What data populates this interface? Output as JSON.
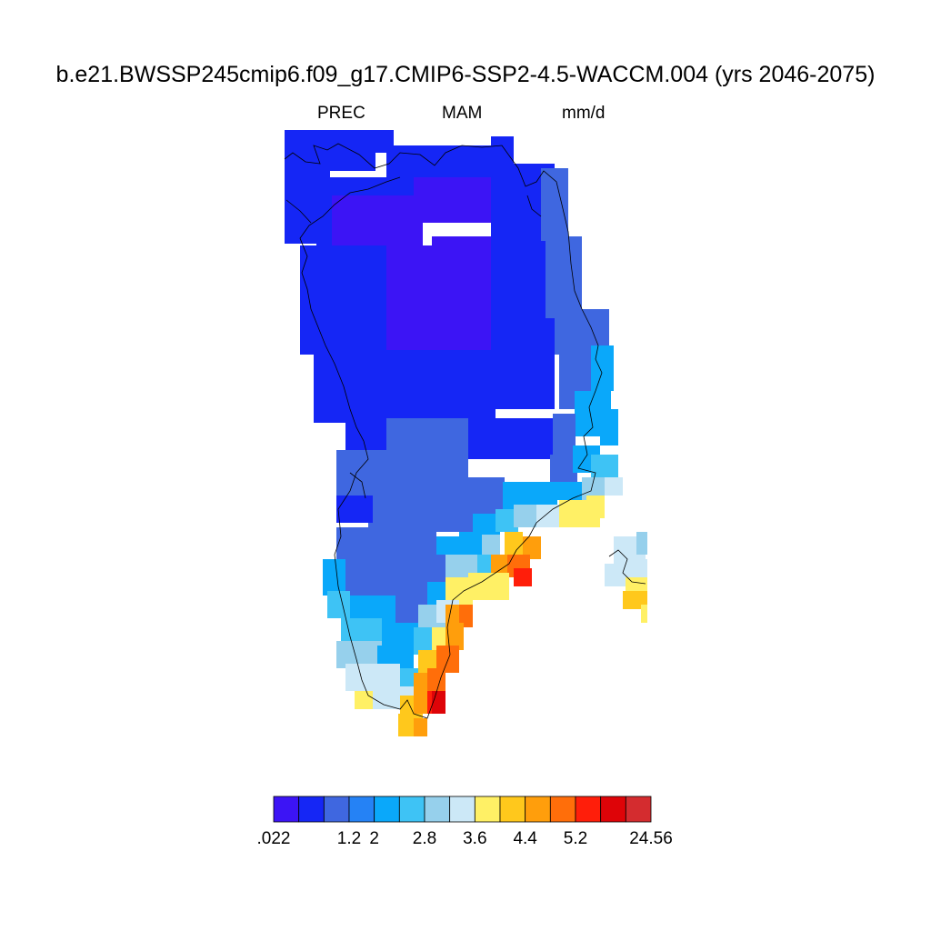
{
  "chart_data": {
    "type": "heatmap",
    "title": "b.e21.BWSSP245cmip6.f09_g17.CMIP6-SSP2-4.5-WACCM.004 (yrs 2046-2075)",
    "variable": "PREC",
    "season": "MAM",
    "units": "mm/d",
    "colorbar": {
      "levels": [
        ".022",
        "",
        "1.2",
        "2",
        "2.8",
        "3.6",
        "4.4",
        "5.2",
        "24.56"
      ],
      "bins": [
        {
          "range": "0.022–0.8",
          "color": "#3c14f5"
        },
        {
          "range": "0.8–1.2",
          "color": "#1526f5"
        },
        {
          "range": "1.2–1.6",
          "color": "#3f67e0"
        },
        {
          "range": "1.6–2.0",
          "color": "#2582f5"
        },
        {
          "range": "2.0–2.4",
          "color": "#0aa8fa"
        },
        {
          "range": "2.4–2.8",
          "color": "#3ec3f5"
        },
        {
          "range": "2.8–3.2",
          "color": "#96d0ec"
        },
        {
          "range": "3.2–3.6",
          "color": "#cce8f7"
        },
        {
          "range": "3.6–4.0",
          "color": "#fff065"
        },
        {
          "range": "4.0–4.4",
          "color": "#ffc81c"
        },
        {
          "range": "4.4–4.8",
          "color": "#ff9e0c"
        },
        {
          "range": "4.8–5.2",
          "color": "#ff6e0a"
        },
        {
          "range": "5.2–6.0",
          "color": "#ff1e0a"
        },
        {
          "range": "6.0–8.0",
          "color": "#de0408"
        },
        {
          "range": "8.0–24.56",
          "color": "#d42c2f"
        }
      ]
    },
    "regions": [
      {
        "name": "northwest-coast",
        "color_index": 1
      },
      {
        "name": "north-interior",
        "color_index": 0
      },
      {
        "name": "central",
        "color_index": 1
      },
      {
        "name": "east-coast-north",
        "color_index": 2
      },
      {
        "name": "east-coast-mid",
        "color_index": 4
      },
      {
        "name": "southwest",
        "color_index": 2
      },
      {
        "name": "south-west-coast",
        "color_index": 6
      },
      {
        "name": "southeast-coast",
        "color_index": 10
      },
      {
        "name": "southern-tip",
        "color_index": 12
      }
    ]
  }
}
